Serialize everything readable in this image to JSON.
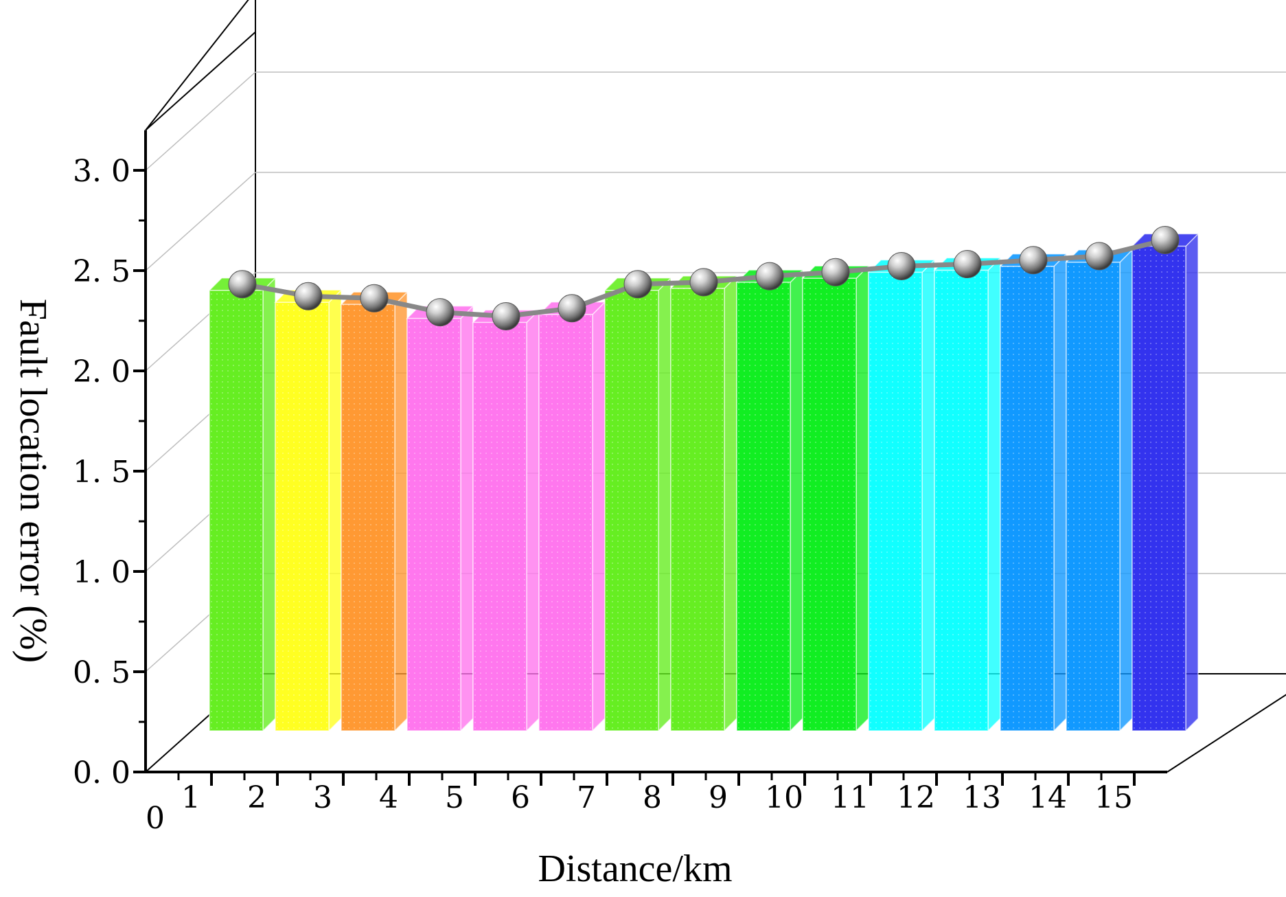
{
  "chart_data": {
    "type": "bar",
    "style": "3d-bar-with-line",
    "categories": [
      "1",
      "2",
      "3",
      "4",
      "5",
      "6",
      "7",
      "8",
      "9",
      "10",
      "11",
      "12",
      "13",
      "14",
      "15"
    ],
    "values": [
      2.47,
      2.41,
      2.4,
      2.33,
      2.31,
      2.35,
      2.47,
      2.48,
      2.51,
      2.53,
      2.56,
      2.57,
      2.59,
      2.61,
      2.69
    ],
    "xlabel": "Distance/km",
    "ylabel": "Fault location error (%)",
    "x_origin_label": "0",
    "ylim": [
      0,
      3.2
    ],
    "yticks": [
      "0. 0",
      "0. 5",
      "1. 0",
      "1. 5",
      "2. 0",
      "2. 5",
      "3. 0"
    ],
    "ytick_values": [
      0,
      0.5,
      1.0,
      1.5,
      2.0,
      2.5,
      3.0
    ],
    "grid": true,
    "bar_colors": [
      "#66ee22",
      "#ffff22",
      "#ff9933",
      "#ff77ee",
      "#ff77ee",
      "#ff77ee",
      "#66ee22",
      "#66ee22",
      "#11ee22",
      "#11ee22",
      "#11ffff",
      "#11ffff",
      "#1199ff",
      "#1199ff",
      "#3333ee"
    ],
    "line_color": "#888888",
    "marker_color": "#aaaaaa"
  }
}
